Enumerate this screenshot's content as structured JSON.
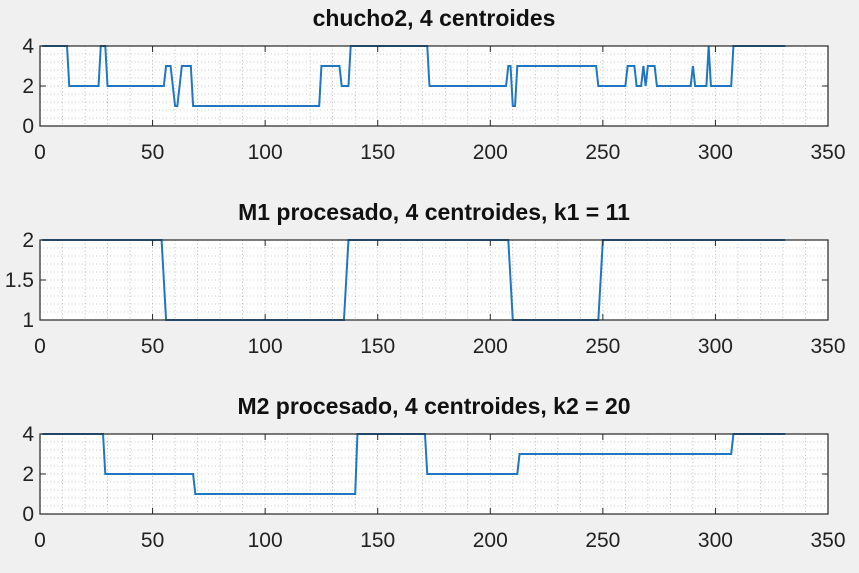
{
  "figure": {
    "background": "#f0f0f0",
    "axes_background": "#ffffff",
    "line_color": "#1f77c4"
  },
  "chart_data": [
    {
      "type": "line",
      "title": "chucho2, 4 centroides",
      "xlabel": "",
      "ylabel": "",
      "xlim": [
        0,
        350
      ],
      "ylim": [
        0,
        4
      ],
      "xticks": [
        0,
        50,
        100,
        150,
        200,
        250,
        300,
        350
      ],
      "yticks": [
        0,
        2,
        4
      ],
      "ytick_labels": [
        "0",
        "2",
        "4"
      ],
      "grid": "minor-dotted",
      "series": [
        {
          "x": [
            1,
            12,
            13,
            26,
            27,
            29,
            30,
            55,
            56,
            58,
            59,
            60,
            61,
            63,
            64,
            67,
            68,
            124,
            125,
            133,
            134,
            137,
            138,
            140,
            141,
            172,
            173,
            207,
            208,
            209,
            210,
            211,
            212,
            213,
            214,
            247,
            248,
            260,
            261,
            264,
            265,
            267,
            268,
            269,
            270,
            273,
            274,
            279,
            280,
            289,
            290,
            291,
            292,
            296,
            297,
            298,
            299,
            307,
            308,
            331
          ],
          "y": [
            4,
            4,
            2,
            2,
            4,
            4,
            2,
            2,
            3,
            3,
            2,
            1,
            1,
            3,
            3,
            3,
            1,
            1,
            3,
            3,
            2,
            2,
            4,
            4,
            4,
            4,
            2,
            2,
            3,
            3,
            1,
            1,
            3,
            3,
            3,
            3,
            2,
            2,
            3,
            3,
            2,
            2,
            3,
            2,
            3,
            3,
            2,
            2,
            2,
            2,
            3,
            2,
            2,
            2,
            4,
            2,
            2,
            2,
            4,
            4
          ]
        }
      ]
    },
    {
      "type": "line",
      "title": "M1 procesado, 4 centroides, k1 = 11",
      "xlabel": "",
      "ylabel": "",
      "xlim": [
        0,
        350
      ],
      "ylim": [
        1,
        2
      ],
      "xticks": [
        0,
        50,
        100,
        150,
        200,
        250,
        300,
        350
      ],
      "yticks": [
        1,
        1.5,
        2
      ],
      "ytick_labels": [
        "1",
        "1.5",
        "2"
      ],
      "grid": "minor-dotted",
      "series": [
        {
          "x": [
            1,
            54,
            56,
            135,
            137,
            208,
            210,
            248,
            250,
            331
          ],
          "y": [
            2,
            2,
            1,
            1,
            2,
            2,
            1,
            1,
            2,
            2
          ]
        }
      ]
    },
    {
      "type": "line",
      "title": "M2 procesado, 4 centroides, k2 = 20",
      "xlabel": "",
      "ylabel": "",
      "xlim": [
        0,
        350
      ],
      "ylim": [
        0,
        4
      ],
      "xticks": [
        0,
        50,
        100,
        150,
        200,
        250,
        300,
        350
      ],
      "yticks": [
        0,
        2,
        4
      ],
      "ytick_labels": [
        "0",
        "2",
        "4"
      ],
      "grid": "minor-dotted",
      "series": [
        {
          "x": [
            1,
            28,
            29,
            68,
            69,
            140,
            141,
            171,
            172,
            212,
            213,
            307,
            308,
            331
          ],
          "y": [
            4,
            4,
            2,
            2,
            1,
            1,
            4,
            4,
            2,
            2,
            3,
            3,
            4,
            4
          ]
        }
      ]
    }
  ]
}
